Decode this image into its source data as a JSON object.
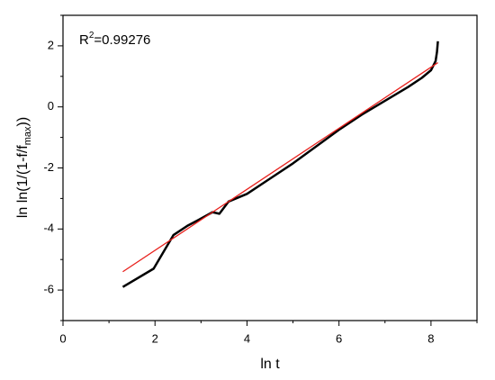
{
  "chart_data": {
    "type": "line",
    "annotation": [
      "R",
      "2",
      "=0.99276"
    ],
    "xlabel": "ln t",
    "ylabel": [
      "ln ln(1/(1-f/f",
      "max",
      "))"
    ],
    "series": [
      {
        "color": "#000000",
        "width": 2.5,
        "x": [
          1.3,
          1.97,
          2.4,
          2.7,
          2.95,
          3.25,
          3.4,
          3.6,
          4.0,
          4.5,
          5.0,
          5.5,
          6.0,
          6.5,
          7.0,
          7.5,
          7.8,
          8.0,
          8.1,
          8.13,
          8.15
        ],
        "values": [
          -5.9,
          -5.3,
          -4.2,
          -3.9,
          -3.7,
          -3.45,
          -3.5,
          -3.1,
          -2.85,
          -2.35,
          -1.85,
          -1.3,
          -0.75,
          -0.25,
          0.2,
          0.65,
          0.95,
          1.2,
          1.5,
          1.8,
          2.15
        ]
      },
      {
        "color": "#e8201c",
        "width": 1.3,
        "x": [
          1.3,
          8.15
        ],
        "values": [
          -5.4,
          1.45
        ]
      }
    ],
    "xlim": [
      0,
      9
    ],
    "xticks": [
      0,
      2,
      4,
      6,
      8
    ],
    "xticks_minor": [
      1,
      3,
      5,
      7,
      9
    ],
    "ylim": [
      -7,
      3
    ],
    "yticks": [
      -6,
      -4,
      -2,
      0,
      2
    ],
    "yticks_minor": [
      -7,
      -5,
      -3,
      -1,
      1,
      3
    ]
  }
}
